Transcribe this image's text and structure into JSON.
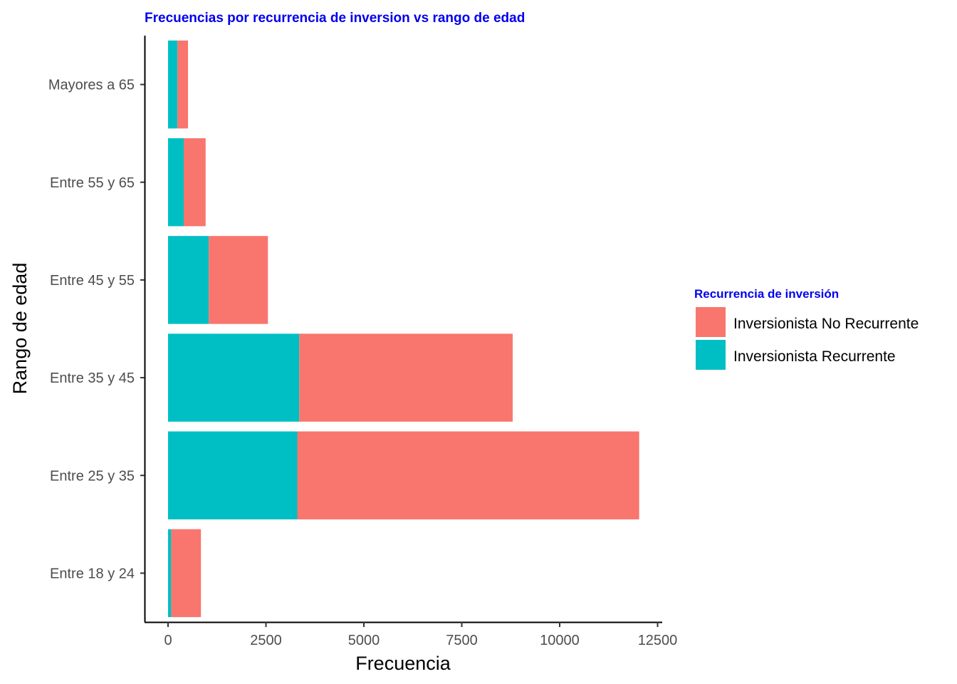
{
  "chart_data": {
    "type": "bar",
    "orientation": "horizontal",
    "stacked": true,
    "title": "Frecuencias por recurrencia de inversion vs rango de edad",
    "xlabel": "Frecuencia",
    "ylabel": "Rango de edad",
    "xlim": [
      -600,
      12950
    ],
    "xticks": [
      0,
      2500,
      5000,
      7500,
      10000,
      12500
    ],
    "xtick_labels": [
      "0",
      "2500",
      "5000",
      "7500",
      "10000",
      "12500"
    ],
    "categories": [
      "Entre 18 y 24",
      "Entre 25 y 35",
      "Entre 35 y 45",
      "Entre 45 y 55",
      "Entre 55 y 65",
      "Mayores a 65"
    ],
    "series": [
      {
        "name": "Inversionista Recurrente",
        "color": "#00BFC4",
        "values": [
          80,
          3300,
          3350,
          1040,
          400,
          240
        ]
      },
      {
        "name": "Inversionista No Recurrente",
        "color": "#F8766D",
        "values": [
          760,
          8730,
          5450,
          1510,
          560,
          270
        ]
      }
    ],
    "legend": {
      "title": "Recurrencia de inversión",
      "position": "right",
      "entries": [
        {
          "label": "Inversionista No Recurrente",
          "color": "#F8766D"
        },
        {
          "label": "Inversionista Recurrente",
          "color": "#00BFC4"
        }
      ]
    },
    "grid": false
  }
}
